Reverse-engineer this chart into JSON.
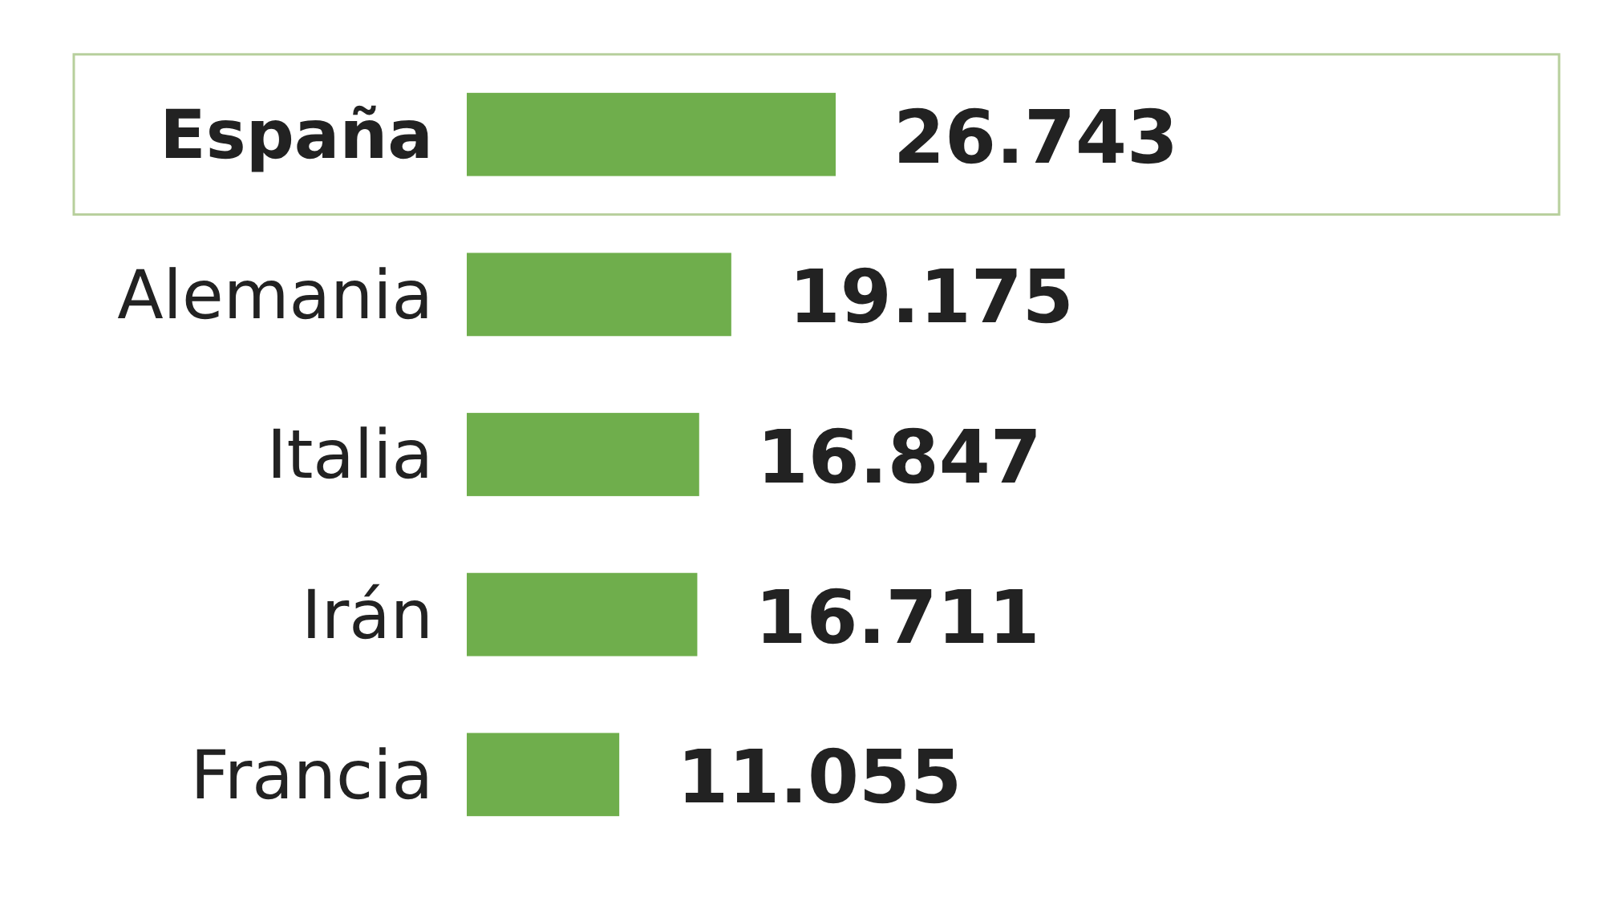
{
  "chart_data": {
    "type": "bar",
    "orientation": "horizontal",
    "categories": [
      "España",
      "Alemania",
      "Italia",
      "Irán",
      "Francia"
    ],
    "values": [
      26743,
      19175,
      16847,
      16711,
      11055
    ],
    "value_labels": [
      "26.743",
      "19.175",
      "16.847",
      "16.711",
      "11.055"
    ],
    "color": "#6fae4c",
    "tick_labels": "y"
  }
}
